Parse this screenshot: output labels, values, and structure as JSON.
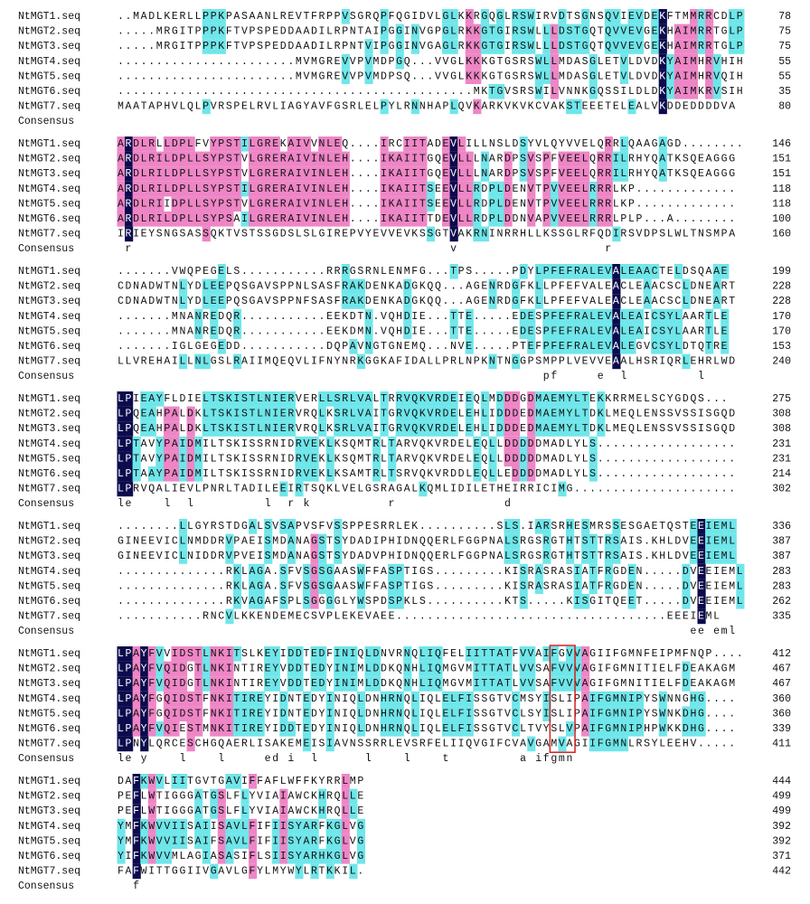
{
  "names": [
    "NtMGT1.seq",
    "NtMGT2.seq",
    "NtMGT3.seq",
    "NtMGT4.seq",
    "NtMGT5.seq",
    "NtMGT6.seq",
    "NtMGT7.seq"
  ],
  "consensus_label": "Consensus",
  "blocks": [
    {
      "sequences": [
        "..MADLKERLLPPKPASAANLREVTFRPPVSGRQPFQGIDVLGLKKRGQGLRSWIRVDTSGNSQVIEVDEKFTMMRRCDLP",
        ".....MRGITPPPKFTVPSPEDDAADILRPNTAIPGGINVGPGLRKKGTGIRSWLLLDSTGQTQVVEVGEKHAIMRRTGLP",
        ".....MRGITPPPKFTVPSPEDDAADILRPNTVIPGGINVGAGLRKKGTGIRSWLLLDSTGQTQVVEVGEKHAIMRRTGLP",
        ".......................MVMGREVVPVMDPGQ...VVGLKKKGTGSRSWLLMDASGLETVLDVDKYAIMHRVHIH",
        ".......................MVMGREVVPVMDPSQ...VVGLKKKGTGSRSWLLMDASGLETVLDVDKYAIMHRVQIH",
        "..............................................MKTGVSRSWILVNNKGQSSILDLDKYAIMKRVSIH",
        "MAATAPHVLQLPVRSPELRVLIAGYAVFGSRLELPYLRNNHAPLQVKARKVKVKCVAKSTEEETELEALVKDDEDDDDVA"
      ],
      "ends": [
        78,
        75,
        75,
        55,
        55,
        35,
        80
      ]
    },
    {
      "sequences": [
        "ARDLRLLDPLFVYPSTILGREKAIVVNLEQ....IRCIITADEVLILLNSLDSYVLQYVVELQRRLQAAGAGD........",
        "ARDLRILDPLLSYPSTVLGRERAIVINLEH....IKAIITGQEVLLLNARDPSVSPFVEELQRRILRHYQATKSQEAGGG",
        "ARDLRILDPLLSYPSTVLGRERAIVINLEH....IKAIITGQEVLLLNARDPSVSPFVEELQRRILRHYQATKSQEAGGG",
        "ARDLRILDPLLSYPSTILGRERAIVINLEH....IKAIITSEEVLLRDPLDENVTPVVEELRRRLKP.............",
        "ARDLRIIDPLLSYPSTVLGRERAIVINLEH....IKAIITSEEVLLRDPLDENVTPVVEELRRRLKP.............",
        "ARDLRILDPLLSYPSAILGRERAIVINLEH....IKAIITTDEVLLRDPLDDNVAPVVEELRRRLPLP...A........",
        "IRIEYSNGSASSQKTVSTSSGDSLSLGIREPVYEVVEVKSSGTVAKRNINRRHLLKSSGLRFQDIRSVDPSLWLTNSMPA"
      ],
      "ends": [
        146,
        151,
        151,
        118,
        118,
        100,
        160
      ],
      "consensus": " r                                         v                   r"
    },
    {
      "sequences": [
        ".......VWQPEGELS...........RRRGSRNLENMFG...TPS.....PDYLPFEFRALEVALEAACTELDSQAAE",
        "CDNADWTNLYDLEEPQSGAVSPPNLSASFRAKDENKADGKQQ...AGENRDGFKLLPFEFVALEACLEAACSCLDNEART",
        "CDNADWTNLYDLEEPQSGAVSPPNFSASFRAKDENKADGKQQ...AGENRDGFKLLPFEFVALEACLEAACSCLDNEART",
        ".......MNANREDQR...........EEKDTN.VQHDIE...TTE.....EDESPFEFRALEVALEAICSYLAARTLE",
        ".......MNANREDQR...........EEKDMN.VQHDIE...TTE.....EDESPFEFRALEVALEAICSYLAARTLE",
        ".......IGLGEGEDD...........DQPAVNGTGNEMQ...NVE.....PTEFPFEFRALEVALEGVCSYLDTQTRE",
        "LLVREHAILLNLGSLRAIIMQEQVLIFNYNRKGGKAFIDALLPRLNPKNTNGGPSMPPLVEVVEAALHSRIQRLEHRLWD"
      ],
      "ends": [
        199,
        228,
        228,
        170,
        170,
        153,
        240
      ],
      "consensus": "                                                       pf     e  l         l"
    },
    {
      "sequences": [
        "LPIEAYFLDIELTSKISTLNIERVERLLSRLVALTRRVQKVRDEIEQLMDDDGDMAEMYLTEKKRRMELSCYGDQS...",
        "LPQEAHPALDKLTSKISTLNIERVRQLKSRLVAITGRVQKVRDELEHLIDDDEDMAEMYLTDKLMEQLENSSVSSISGQD",
        "LPQEAHPALDKLTSKISTLNIERVRQLKSRLVAITGRVQKVRDELEHLIDDDEDMAEMYLTDKLMEQLENSSVSSISGQD",
        "LPTAVYPAIDMILTSKISSRNIDRVEKLKSQMTRLTARVQKVRDELEQLLDDDDDMADLYLS..................",
        "LPTAVYPAIDMILTSKISSRNIDRVEKLKSQMTRLTARVQKVRDELEQLLDDDDDMADLYLS..................",
        "LPTAAYPAIDMILTSKISSRNIDRVEKLKSAMTRLTSRVQKVRDDLEQLLEDDDDMADLYLS..................",
        "LPRVQALIEVLPNRLTADILEEIRTSQKLVELGSRAGALKQMLIDILETHEIRRICIMG....................."
      ],
      "ends": [
        275,
        308,
        308,
        231,
        231,
        214,
        302
      ],
      "consensus": "le    l  l         l  r k          r              d"
    },
    {
      "sequences": [
        "........LLGYRSTDGALSVSAPVSFVSSPPESRRLEK..........SLS.IARSRHESMRSSESGAETQSTEEIEML",
        "GINEEVICLNMDDRVPAEISMDANAGSTSYDADIPHIDNQQERLFGGPNALSRGSRGTHTSTTRSAIS.KHLDVEEIEML",
        "GINEEVICLNIDDRVPVEISMDANAGSTSYDADVPHIDNQQERLFGGPNALSRGSRGTHTSTTRSAIS.KHLDVEEIEML",
        "..............RKLAGA.SFVSGSGAASWFFASPTIGS.........KISRASRASIATFRGDEN.....DVEEIEML",
        "..............RKLAGA.SFVSGSGAASWFFASPTIGS.........KISRASRASIATFRGDEN.....DVEEIEML",
        "..............RKVAGAFSPLSGGGGLYWSPDSPKLS..........KTS.....KISGITQEET.....DVEEIEML",
        "...........RNCVLKKENDEMECSVPLEKEVAEE...................................EEEIEML"
      ],
      "ends": [
        336,
        387,
        387,
        283,
        283,
        262,
        335
      ],
      "consensus": "                                                                          ee eml"
    },
    {
      "sequences": [
        "LPAYFVVIDSTLNKITSLKEYIDDTEDFINIQLDNVRNQLIQFELIITTATFVVAIFGVVAGIIFGMNFEIPMFNQP....",
        "LPAYFVQIDGTLNKINTIREYVDDTEDYINIMLDDKQNHLIQMGVMITTATLVVSAFVVVAGIFGMNITIELFDEAKAGM",
        "LPAYFVQIDGTLNKINTIREYVDDTEDYINIMLDDKQNHLIQMGVMITTATLVVSAFVVVAGIFGMNITIELFDEAKAGM",
        "LPAYFGQIDSTFNKITIREYIDNTEDYINIQLDNHRNQLIQLELFISSGTVCMSYISLIPAIFGMNIPYSWNNGHG....",
        "LPAYFGQIDSTFNKITIREYIDNTEDYINIQLDNHRNQLIQLELFISSGTVCLSYISLIPAIFGMNIPYSWNKDHG....",
        "LPAYFVQIESTMNKITIREYIDDTEDYINIQLDNHRNQLIQLELFISSGTVCLTVYSLVPAIFGMNIPHPWKKDHG....",
        "LPNYLQRCESCHGQAERLISAKEMEISIAVNSSRRLEVSRFELIIQVGIFCVAVGAMVAGIIFGMNLRSYLEEHV....."
      ],
      "ends": [
        412,
        467,
        467,
        360,
        360,
        339,
        411
      ],
      "consensus": "le y    l    l     ed i  l      l    l    t         a ifgmn"
    },
    {
      "sequences": [
        "DAFKWVLIITGVTGAVIFFAFLWFFKYRRLMP",
        "PEFLWTIGGGATGSLFLYVIAIAWCKHRQLLE",
        "PEFLWTIGGGATGSLFLYVIAIAWCKHRQLLE",
        "YMFKWVVIISAIISAVLFIFIISYARFKGLVG",
        "YMFKWVVIISAIFSAVLFIFIISYARFKGLVG",
        "YIFKWVVMLAGIASASIFLSIISYARHKGLVG",
        "FAFWITTGGIIVGAVLGFYLMYWYLRTKKIL."
      ],
      "ends": [
        444,
        499,
        499,
        392,
        392,
        371,
        442
      ],
      "consensus": "  f"
    }
  ]
}
